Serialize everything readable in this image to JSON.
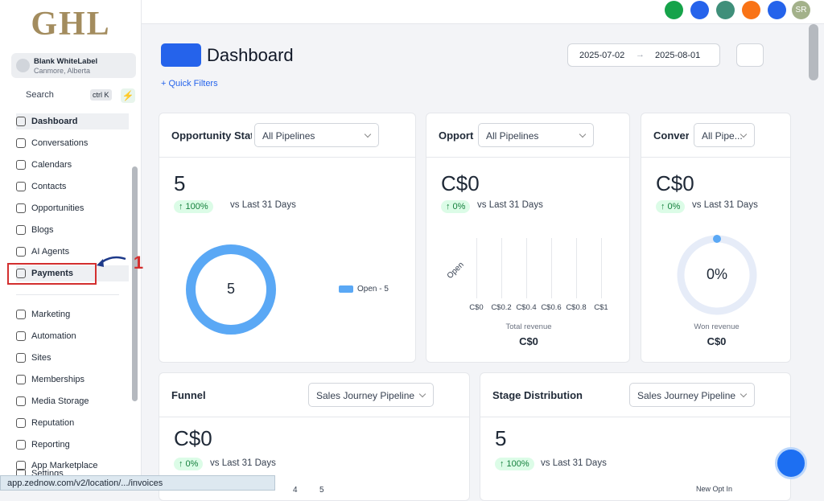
{
  "sidebar": {
    "logo": "GHL",
    "account": {
      "name": "Blank WhiteLabel",
      "location": "Canmore, Alberta"
    },
    "search": "Search",
    "shortcut": "ctrl K",
    "menu": [
      "Dashboard",
      "Conversations",
      "Calendars",
      "Contacts",
      "Opportunities",
      "Blogs",
      "AI Agents",
      "Payments",
      "Marketing",
      "Automation",
      "Sites",
      "Memberships",
      "Media Storage",
      "Reputation",
      "Reporting",
      "App Marketplace",
      "Settings"
    ],
    "annotation": "1"
  },
  "status_bar": "app.zednow.com/v2/location/.../invoices",
  "topbar": {
    "avatar": "SR"
  },
  "header": {
    "title": "Dashboard",
    "date_start": "2025-07-02",
    "date_end": "2025-08-01",
    "quick_filters": "+ Quick Filters"
  },
  "cards": [
    {
      "title": "Opportunity Stat",
      "filter": "All Pipelines",
      "value": "5",
      "change": "↑ 100%",
      "compare": "vs Last 31 Days",
      "donut_center": "5",
      "legend": "Open - 5"
    },
    {
      "title": "Opportu",
      "filter": "All Pipelines",
      "value": "C$0",
      "change": "↑ 0%",
      "compare": "vs Last 31 Days",
      "bar_category": "Open",
      "x_ticks": [
        "C$0",
        "C$0.2",
        "C$0.4",
        "C$0.6",
        "C$0.8",
        "C$1"
      ],
      "footer_label": "Total revenue",
      "footer_value": "C$0"
    },
    {
      "title": "Conver",
      "filter": "All Pipe...",
      "value": "C$0",
      "change": "↑ 0%",
      "compare": "vs Last 31 Days",
      "ring_center": "0%",
      "footer_label": "Won revenue",
      "footer_value": "C$0"
    },
    {
      "title": "Funnel",
      "filter": "Sales Journey Pipeline",
      "value": "C$0",
      "change": "↑ 0%",
      "compare": "vs Last 31 Days",
      "axis_labels": [
        "4",
        "5"
      ]
    },
    {
      "title": "Stage Distribution",
      "filter": "Sales Journey Pipeline",
      "value": "5",
      "change": "↑ 100%",
      "compare": "vs Last 31 Days",
      "legend": "New Opt In"
    }
  ]
}
